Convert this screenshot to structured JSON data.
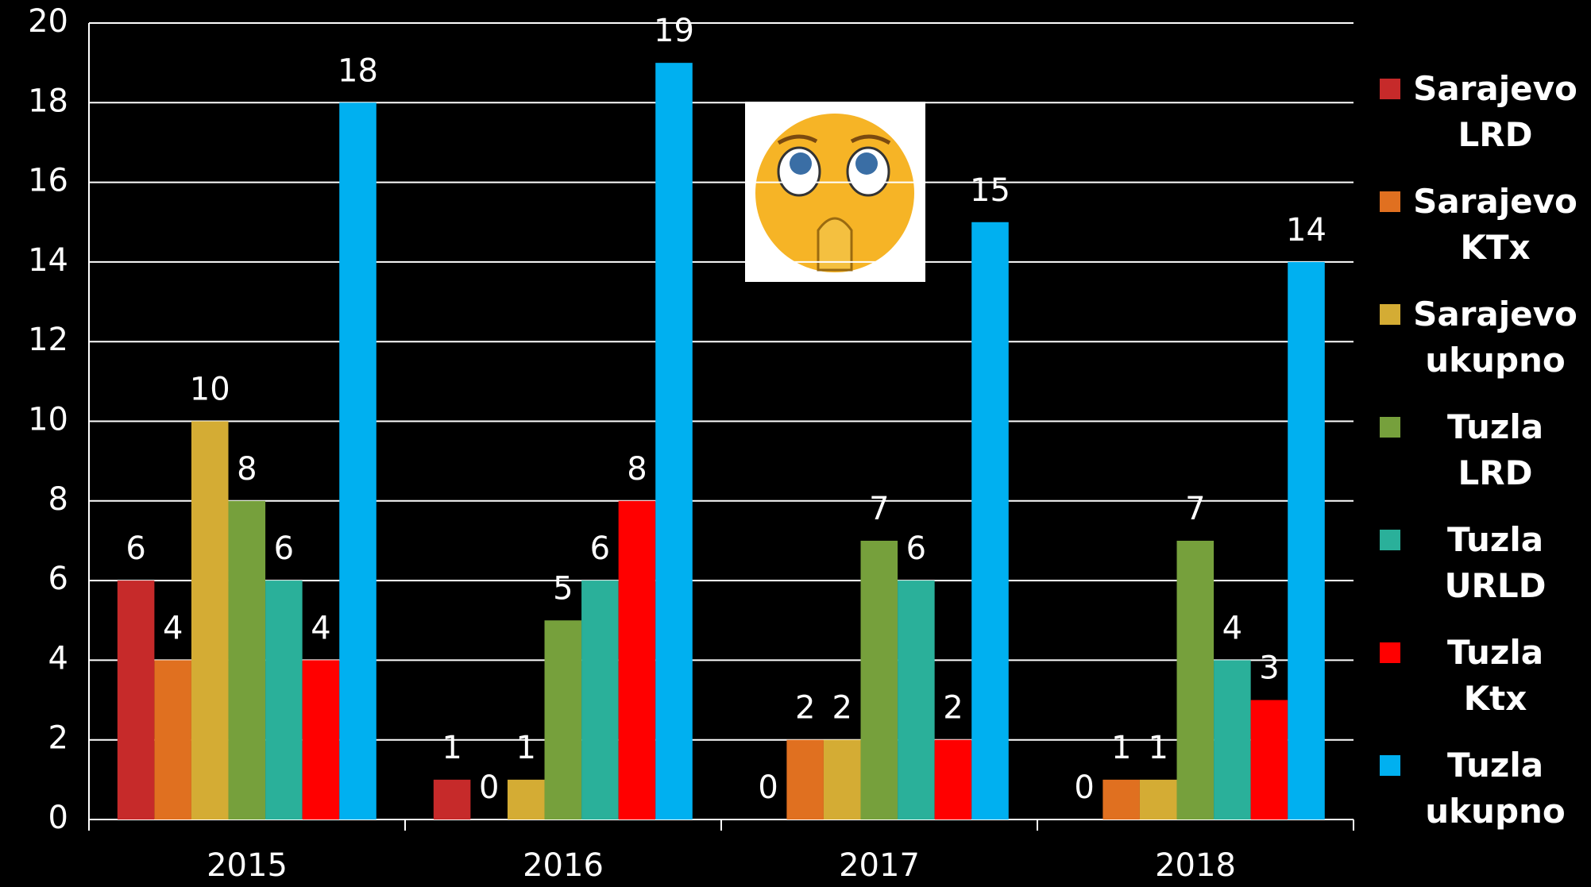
{
  "chart_data": {
    "type": "bar",
    "categories": [
      "2015",
      "2016",
      "2017",
      "2018"
    ],
    "series": [
      {
        "name": "Sarajevo LRD",
        "color": "#c62a2a",
        "values": [
          6,
          1,
          0,
          0
        ]
      },
      {
        "name": "Sarajevo KTx",
        "color": "#e07020",
        "values": [
          4,
          0,
          2,
          1
        ]
      },
      {
        "name": "Sarajevo ukupno",
        "color": "#d4ac34",
        "values": [
          10,
          1,
          2,
          1
        ]
      },
      {
        "name": "Tuzla LRD",
        "color": "#76a03c",
        "values": [
          8,
          5,
          7,
          7
        ]
      },
      {
        "name": "Tuzla URLD",
        "color": "#2ab09a",
        "values": [
          6,
          6,
          6,
          4
        ]
      },
      {
        "name": "Tuzla Ktx",
        "color": "#ff0000",
        "values": [
          4,
          8,
          2,
          3
        ]
      },
      {
        "name": "Tuzla ukupno",
        "color": "#00b0f0",
        "values": [
          18,
          19,
          15,
          14
        ]
      }
    ],
    "ylim": [
      0,
      20
    ],
    "yticks": [
      0,
      2,
      4,
      6,
      8,
      10,
      12,
      14,
      16,
      18,
      20
    ],
    "grid": true,
    "legend": "right"
  }
}
